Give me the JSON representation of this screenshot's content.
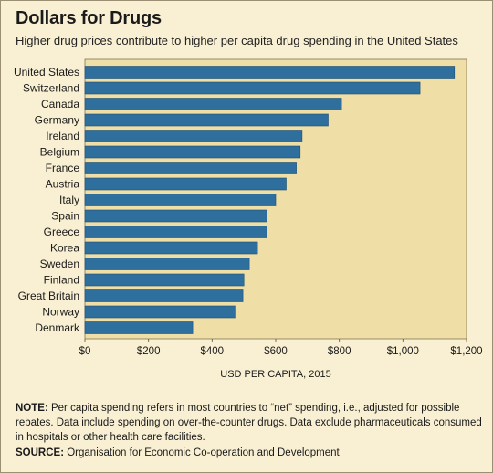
{
  "header": {
    "title": "Dollars for Drugs",
    "subtitle": "Higher drug prices contribute to higher per capita drug spending in the United States"
  },
  "colors": {
    "bar": "#2f6f9e",
    "bar_edge": "#1f4f72",
    "plot_background": "#efdfa6",
    "panel_background": "#f9f0d3"
  },
  "chart_data": {
    "type": "bar",
    "orientation": "horizontal",
    "title": "Dollars for Drugs",
    "subtitle": "Higher drug prices contribute to higher per capita drug spending in the United States",
    "xlabel": "USD PER CAPITA, 2015",
    "ylabel": "",
    "xlim": [
      0,
      1200
    ],
    "xticks": [
      0,
      200,
      400,
      600,
      800,
      1000,
      1200
    ],
    "xtick_labels": [
      "$0",
      "$200",
      "$400",
      "$600",
      "$800",
      "$1,000",
      "$1,200"
    ],
    "grid": false,
    "legend": "none",
    "categories": [
      "United States",
      "Switzerland",
      "Canada",
      "Germany",
      "Ireland",
      "Belgium",
      "France",
      "Austria",
      "Italy",
      "Spain",
      "Greece",
      "Korea",
      "Sweden",
      "Finland",
      "Great Britain",
      "Norway",
      "Denmark"
    ],
    "values": [
      1162,
      1054,
      807,
      765,
      683,
      677,
      665,
      633,
      600,
      572,
      572,
      543,
      517,
      500,
      497,
      472,
      339
    ]
  },
  "footer": {
    "note_label": "NOTE:",
    "note_text": " Per capita spending refers in most countries to “net” spending, i.e., adjusted for possible rebates. Data include spending on over-the-counter drugs. Data exclude pharmaceuticals consumed in hospitals or other health care facilities.",
    "source_label": "SOURCE:",
    "source_text": " Organisation for Economic Co-operation and Development"
  }
}
